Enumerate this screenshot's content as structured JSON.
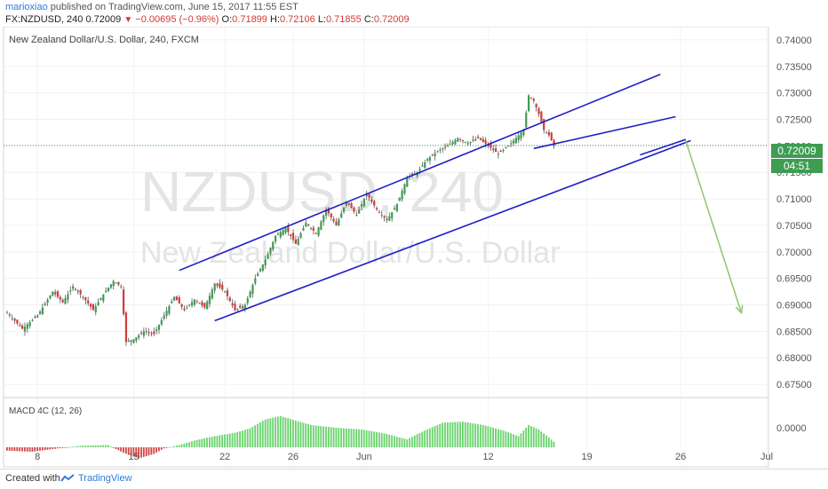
{
  "header": {
    "author": "marioxiao",
    "published": "published on TradingView.com, June 15, 2017 11:55 EST",
    "symbol_line_prefix": "FX:NZDUSD, 240",
    "last": "0.72009",
    "change": "−0.00695 (−0.96%)",
    "open_label": "O:",
    "open": "0.71899",
    "high_label": "H:",
    "high": "0.72106",
    "low_label": "L:",
    "low": "0.71855",
    "close_label": "C:",
    "close": "0.72009"
  },
  "pane": {
    "title": "New Zealand Dollar/U.S. Dollar, 240, FXCM",
    "watermark_symbol": "NZDUSD, 240",
    "watermark_name": "New Zealand Dollar/U.S. Dollar"
  },
  "price_tag": {
    "value": "0.72009",
    "countdown": "04:51"
  },
  "macd": {
    "label": "MACD 4C (12, 26)",
    "zero_label": "0.0000"
  },
  "footer": {
    "created": "Created with",
    "brand": "TradingView"
  },
  "colors": {
    "up": "#3e9c53",
    "down": "#d23a3a",
    "channel": "#1f1fc7",
    "arrow": "#8dc572",
    "macd_up": "#68d36b",
    "macd_down": "#d24545"
  },
  "chart_data": {
    "type": "candlestick",
    "symbol": "FX:NZDUSD",
    "timeframe": "240",
    "ylim": [
      0.6725,
      0.7425
    ],
    "y_ticks": [
      "0.74000",
      "0.73500",
      "0.73000",
      "0.72500",
      "0.72000",
      "0.71500",
      "0.71000",
      "0.70500",
      "0.70000",
      "0.69500",
      "0.69000",
      "0.68500",
      "0.68000",
      "0.67500"
    ],
    "x_ticks": [
      "8",
      "15",
      "22",
      "26",
      "Jun",
      "12",
      "19",
      "26",
      "Jul"
    ],
    "price_path": [
      [
        0,
        0.6885
      ],
      [
        6,
        0.6855
      ],
      [
        12,
        0.688
      ],
      [
        18,
        0.6925
      ],
      [
        22,
        0.6905
      ],
      [
        26,
        0.6935
      ],
      [
        30,
        0.6915
      ],
      [
        34,
        0.689
      ],
      [
        38,
        0.692
      ],
      [
        42,
        0.6945
      ],
      [
        45,
        0.6935
      ],
      [
        47,
        0.683
      ],
      [
        50,
        0.6835
      ],
      [
        54,
        0.685
      ],
      [
        58,
        0.6845
      ],
      [
        62,
        0.688
      ],
      [
        66,
        0.6915
      ],
      [
        70,
        0.689
      ],
      [
        74,
        0.691
      ],
      [
        78,
        0.6895
      ],
      [
        82,
        0.694
      ],
      [
        86,
        0.6925
      ],
      [
        90,
        0.689
      ],
      [
        94,
        0.69
      ],
      [
        98,
        0.695
      ],
      [
        102,
        0.6985
      ],
      [
        106,
        0.703
      ],
      [
        110,
        0.7045
      ],
      [
        114,
        0.7015
      ],
      [
        118,
        0.7055
      ],
      [
        122,
        0.7035
      ],
      [
        126,
        0.708
      ],
      [
        130,
        0.705
      ],
      [
        134,
        0.7095
      ],
      [
        138,
        0.707
      ],
      [
        142,
        0.711
      ],
      [
        146,
        0.708
      ],
      [
        150,
        0.706
      ],
      [
        154,
        0.709
      ],
      [
        158,
        0.714
      ],
      [
        162,
        0.715
      ],
      [
        166,
        0.7175
      ],
      [
        170,
        0.719
      ],
      [
        174,
        0.72
      ],
      [
        178,
        0.7215
      ],
      [
        182,
        0.7205
      ],
      [
        186,
        0.7215
      ],
      [
        190,
        0.72
      ],
      [
        194,
        0.7185
      ],
      [
        198,
        0.72
      ],
      [
        202,
        0.722
      ],
      [
        204,
        0.723
      ],
      [
        206,
        0.7295
      ],
      [
        208,
        0.7285
      ],
      [
        210,
        0.726
      ],
      [
        212,
        0.723
      ],
      [
        214,
        0.722
      ],
      [
        216,
        0.7201
      ]
    ],
    "macd_path": [
      [
        0,
        -0.0006
      ],
      [
        10,
        -0.0008
      ],
      [
        20,
        -0.0002
      ],
      [
        30,
        0.0003
      ],
      [
        40,
        0.0004
      ],
      [
        46,
        -0.001
      ],
      [
        52,
        -0.002
      ],
      [
        58,
        -0.0012
      ],
      [
        62,
        -0.0002
      ],
      [
        68,
        0.0004
      ],
      [
        74,
        0.0012
      ],
      [
        82,
        0.002
      ],
      [
        90,
        0.0026
      ],
      [
        96,
        0.0034
      ],
      [
        102,
        0.005
      ],
      [
        108,
        0.0056
      ],
      [
        114,
        0.0048
      ],
      [
        120,
        0.004
      ],
      [
        130,
        0.0035
      ],
      [
        140,
        0.0032
      ],
      [
        150,
        0.0024
      ],
      [
        158,
        0.0014
      ],
      [
        164,
        0.0028
      ],
      [
        172,
        0.0044
      ],
      [
        180,
        0.0046
      ],
      [
        188,
        0.004
      ],
      [
        196,
        0.003
      ],
      [
        202,
        0.002
      ],
      [
        206,
        0.004
      ],
      [
        210,
        0.0032
      ],
      [
        216,
        0.001
      ]
    ],
    "macd_ylim": [
      -0.0035,
      0.007
    ],
    "annotations": [
      {
        "type": "channel_upper",
        "from": [
          0.6965,
          68
        ],
        "to": [
          0.7335,
          258
        ]
      },
      {
        "type": "channel_lower",
        "from": [
          0.687,
          82
        ],
        "to": [
          0.721,
          270
        ]
      },
      {
        "type": "channel_mid_line",
        "from": [
          0.7195,
          208
        ],
        "to": [
          0.7255,
          264
        ]
      },
      {
        "type": "breakout_line",
        "from": [
          0.7183,
          250
        ],
        "to": [
          0.7212,
          268
        ]
      },
      {
        "type": "projection_arrow",
        "from": [
          0.721,
          268
        ],
        "to": [
          0.6885,
          290
        ]
      }
    ]
  }
}
